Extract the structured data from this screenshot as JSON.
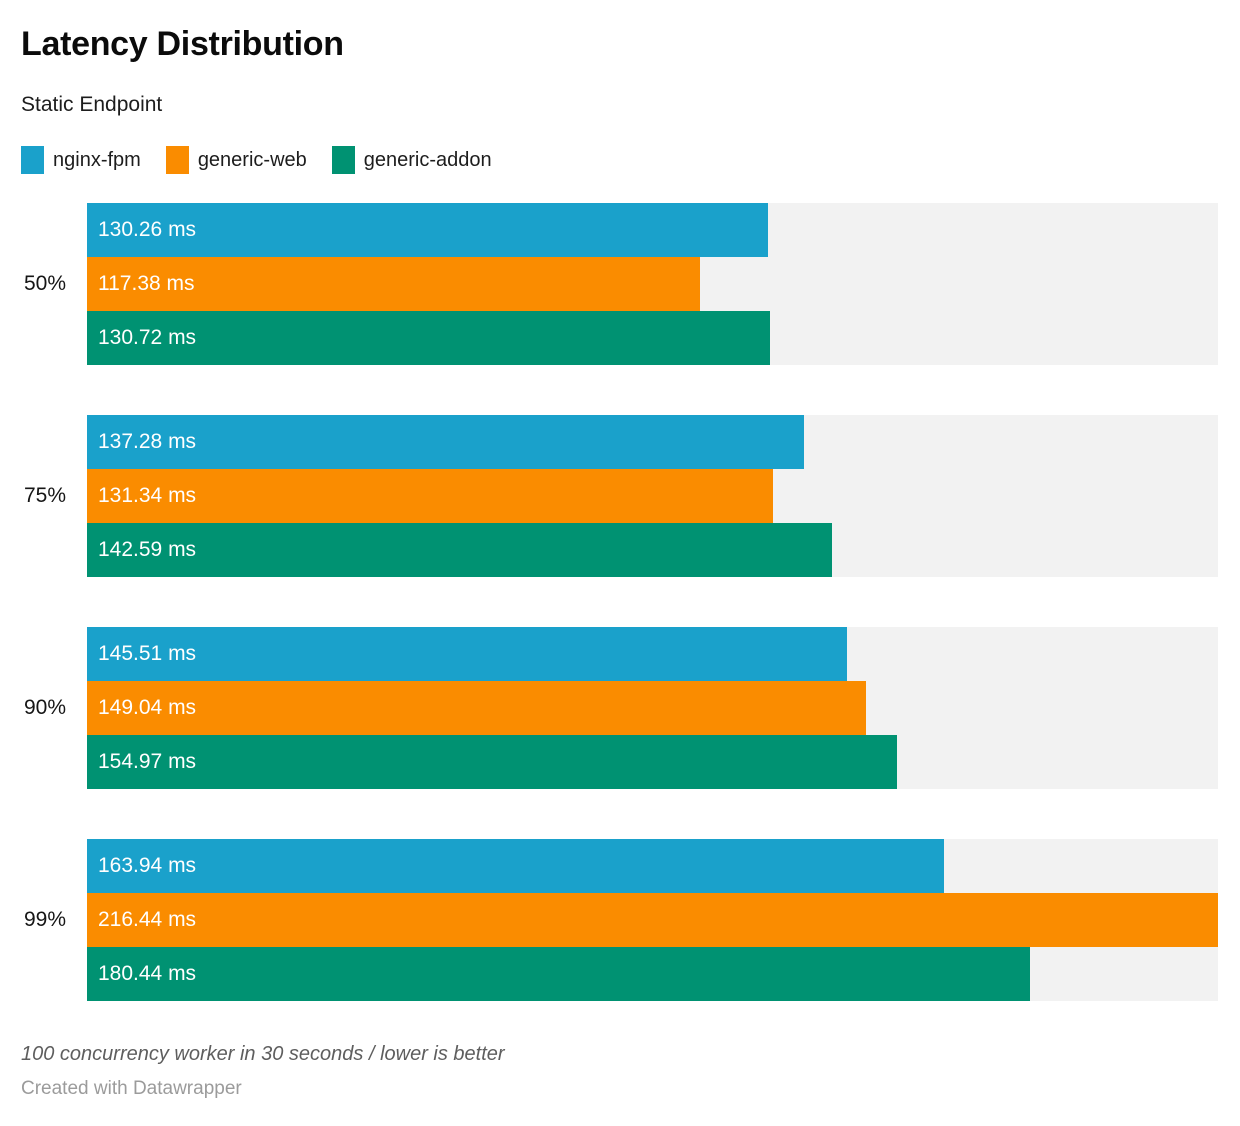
{
  "header": {
    "title": "Latency Distribution",
    "subtitle": "Static Endpoint"
  },
  "chart_data": {
    "type": "bar",
    "orientation": "horizontal",
    "title": "Latency Distribution",
    "subtitle": "Static Endpoint",
    "categories": [
      "50%",
      "75%",
      "90%",
      "99%"
    ],
    "series": [
      {
        "name": "nginx-fpm",
        "color": "#1aa1cb",
        "values": [
          130.26,
          137.28,
          145.51,
          163.94
        ],
        "labels": [
          "130.26 ms",
          "137.28 ms",
          "145.51 ms",
          "163.94 ms"
        ]
      },
      {
        "name": "generic-web",
        "color": "#fa8c00",
        "values": [
          117.38,
          131.34,
          149.04,
          216.44
        ],
        "labels": [
          "117.38 ms",
          "131.34 ms",
          "149.04 ms",
          "216.44 ms"
        ]
      },
      {
        "name": "generic-addon",
        "color": "#009272",
        "values": [
          130.72,
          142.59,
          154.97,
          180.44
        ],
        "labels": [
          "130.72 ms",
          "142.59 ms",
          "154.97 ms",
          "180.44 ms"
        ]
      }
    ],
    "value_suffix": " ms",
    "xlim": [
      0,
      216.44
    ],
    "grid": false,
    "legend_position": "top",
    "track_color": "#f2f2f2",
    "value_label_color": "#ffffff"
  },
  "footer": {
    "note": "100 concurrency worker in 30 seconds / lower is better",
    "attribution": "Created with Datawrapper"
  }
}
